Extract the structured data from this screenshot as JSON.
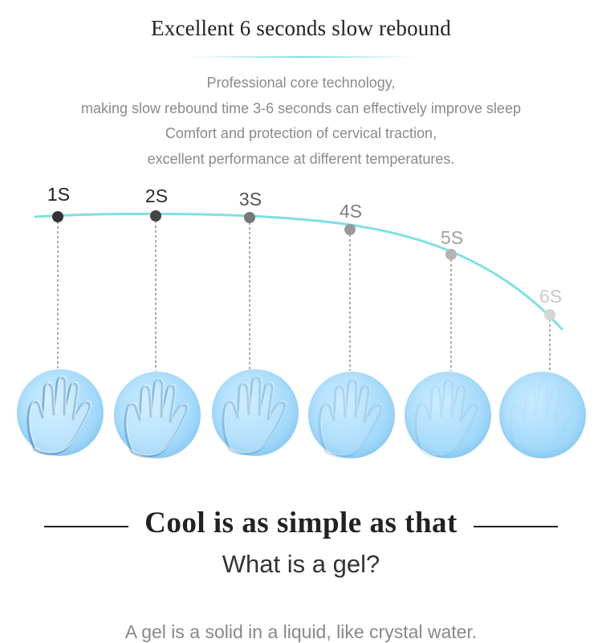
{
  "header": {
    "title": "Excellent 6 seconds slow rebound"
  },
  "description": {
    "lines": [
      "Professional core technology,",
      "making slow rebound time 3-6 seconds can effectively improve sleep",
      "Comfort and protection of cervical traction,",
      "excellent performance at different temperatures."
    ]
  },
  "timeline": {
    "labels": [
      "1S",
      "2S",
      "3S",
      "4S",
      "5S",
      "6S"
    ],
    "label_colors": [
      "#1a1a1a",
      "#2a2a2a",
      "#555555",
      "#808080",
      "#a0a0a0",
      "#c9c9c9"
    ],
    "dot_colors": [
      "#333333",
      "#444444",
      "#777777",
      "#999999",
      "#b4b4b4",
      "#d4d4d4"
    ],
    "curve_color": "#7fe0e2",
    "hand_imprint_strength": [
      1.0,
      0.8,
      0.6,
      0.4,
      0.22,
      0.06
    ]
  },
  "section": {
    "heading": "Cool is as simple as that",
    "subheading": "What is a gel?",
    "body": "A gel is a solid in a liquid, like crystal water."
  }
}
